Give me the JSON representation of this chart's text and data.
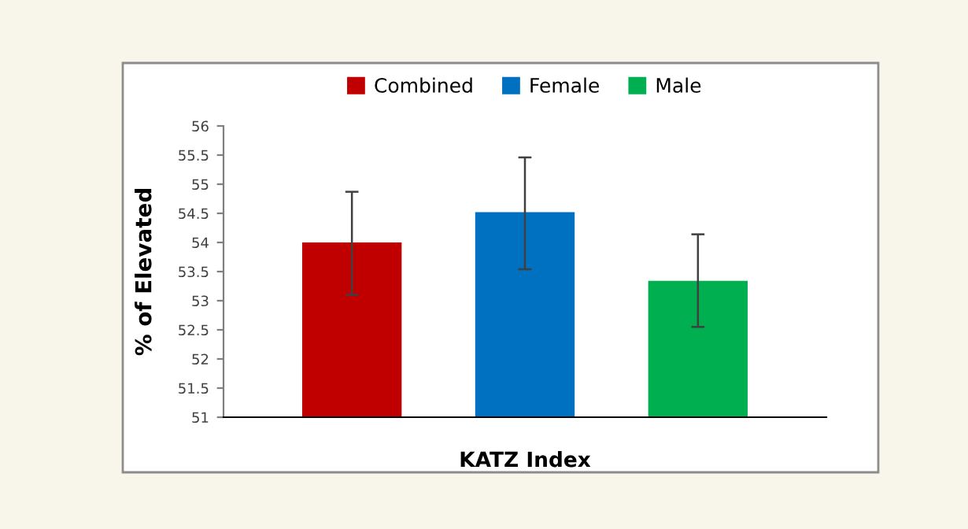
{
  "chart_data": {
    "type": "bar",
    "xlabel": "KATZ Index",
    "ylabel": "% of Elevated",
    "categories": [
      null
    ],
    "series": [
      {
        "name": "Combined",
        "color": "#c00000",
        "values": [
          54.0
        ],
        "errors": [
          [
            53.1,
            54.87
          ]
        ]
      },
      {
        "name": "Female",
        "color": "#0070c0",
        "values": [
          54.52
        ],
        "errors": [
          [
            53.54,
            55.46
          ]
        ]
      },
      {
        "name": "Male",
        "color": "#00b050",
        "values": [
          53.34
        ],
        "errors": [
          [
            52.55,
            54.14
          ]
        ]
      }
    ],
    "ylim": [
      51,
      56
    ],
    "yticks": [
      51,
      51.5,
      52,
      52.5,
      53,
      53.5,
      54,
      54.5,
      55,
      55.5,
      56
    ],
    "grid": false,
    "legend": "top"
  }
}
